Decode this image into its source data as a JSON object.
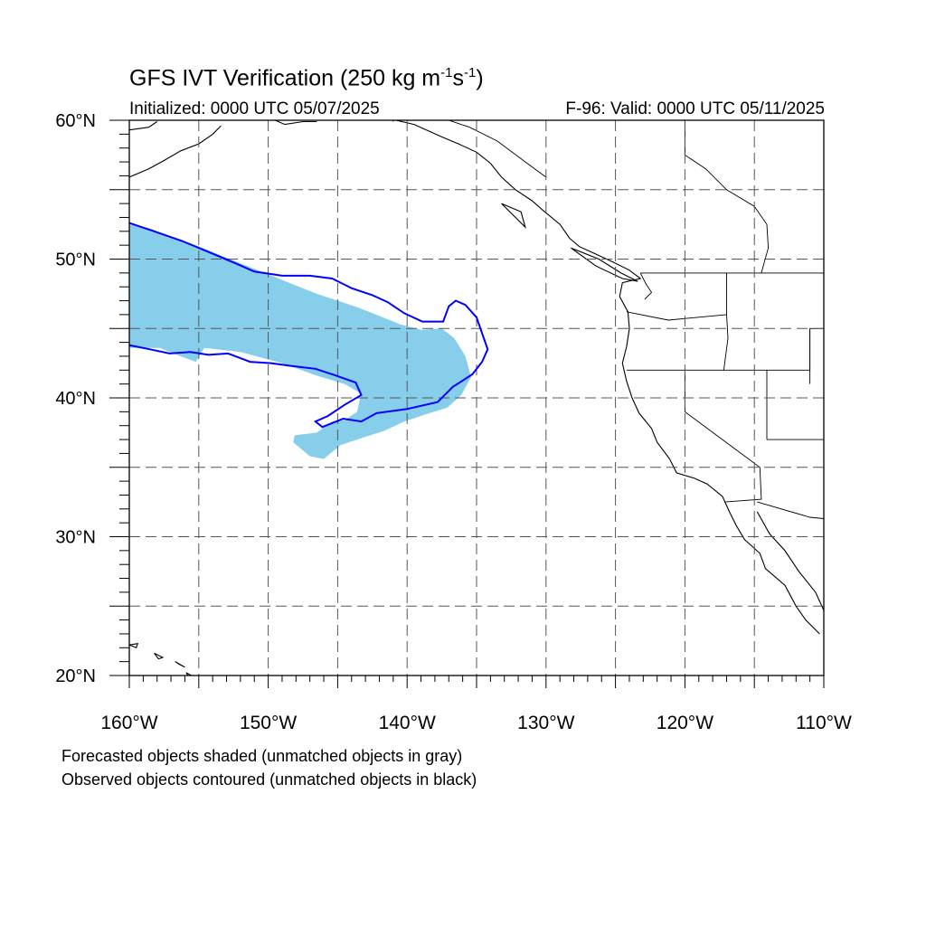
{
  "title": {
    "main_prefix": "GFS IVT Verification (250 kg m",
    "exp1": "-1",
    "mid": "s",
    "exp2": "-1",
    "suffix": ")"
  },
  "subtitle": {
    "initialized": "Initialized: 0000 UTC 05/07/2025",
    "valid": "F-96: Valid: 0000 UTC 05/11/2025"
  },
  "axes": {
    "lon_range": [
      -160,
      -110
    ],
    "lat_range": [
      20,
      60
    ],
    "lon_ticks": [
      {
        "value": -160,
        "label": "160°W"
      },
      {
        "value": -150,
        "label": "150°W"
      },
      {
        "value": -140,
        "label": "140°W"
      },
      {
        "value": -130,
        "label": "130°W"
      },
      {
        "value": -120,
        "label": "120°W"
      },
      {
        "value": -110,
        "label": "110°W"
      }
    ],
    "lat_ticks": [
      {
        "value": 20,
        "label": "20°N"
      },
      {
        "value": 30,
        "label": "30°N"
      },
      {
        "value": 40,
        "label": "40°N"
      },
      {
        "value": 50,
        "label": "50°N"
      },
      {
        "value": 60,
        "label": "60°N"
      }
    ],
    "grid_lon_every": 5,
    "grid_lat_every": 5,
    "grid": true,
    "grid_style": "dashed"
  },
  "colors": {
    "forecast_fill": "#87CEEB",
    "observed_contour": "#0000FF",
    "coastline": "#000000",
    "grid": "#555555"
  },
  "forecast_object": {
    "polygon": [
      [
        -160,
        52.5
      ],
      [
        -158.5,
        52.2
      ],
      [
        -157,
        51.6
      ],
      [
        -155.5,
        51.1
      ],
      [
        -154,
        50.5
      ],
      [
        -152.5,
        49.9
      ],
      [
        -151,
        49.3
      ],
      [
        -149.5,
        48.7
      ],
      [
        -148,
        48.1
      ],
      [
        -146.5,
        47.5
      ],
      [
        -145,
        47
      ],
      [
        -143.5,
        46.5
      ],
      [
        -142,
        45.9
      ],
      [
        -140.5,
        45.3
      ],
      [
        -139,
        44.9
      ],
      [
        -137.5,
        45
      ],
      [
        -136.6,
        44.3
      ],
      [
        -135.8,
        43
      ],
      [
        -135.4,
        41.5
      ],
      [
        -136.1,
        40.2
      ],
      [
        -137.1,
        39.3
      ],
      [
        -138.7,
        38.8
      ],
      [
        -140.2,
        38.3
      ],
      [
        -141.7,
        37.6
      ],
      [
        -143,
        37.2
      ],
      [
        -144.8,
        36.6
      ],
      [
        -146,
        35.6
      ],
      [
        -147,
        35.8
      ],
      [
        -148.2,
        36.8
      ],
      [
        -148.1,
        37.3
      ],
      [
        -146.5,
        37.5
      ],
      [
        -145.4,
        38.3
      ],
      [
        -144.5,
        38.4
      ],
      [
        -143.6,
        39
      ],
      [
        -143.3,
        40.3
      ],
      [
        -144.5,
        41
      ],
      [
        -146.5,
        41.6
      ],
      [
        -149,
        42.5
      ],
      [
        -152,
        43.3
      ],
      [
        -154.6,
        43.6
      ],
      [
        -155.2,
        42.6
      ],
      [
        -156.3,
        43
      ],
      [
        -157.8,
        43.6
      ],
      [
        -160,
        43.6
      ]
    ]
  },
  "observed_object": {
    "contour": [
      [
        -160,
        52.6
      ],
      [
        -158.2,
        52
      ],
      [
        -156.2,
        51.3
      ],
      [
        -154.5,
        50.6
      ],
      [
        -152.6,
        49.8
      ],
      [
        -151,
        49.1
      ],
      [
        -149,
        48.8
      ],
      [
        -147,
        48.8
      ],
      [
        -145.4,
        48.6
      ],
      [
        -144,
        47.9
      ],
      [
        -142.5,
        47.4
      ],
      [
        -141.4,
        46.9
      ],
      [
        -140.2,
        46.1
      ],
      [
        -138.9,
        45.5
      ],
      [
        -137.4,
        45.5
      ],
      [
        -137,
        46.6
      ],
      [
        -136.5,
        47
      ],
      [
        -135.8,
        46.7
      ],
      [
        -135,
        45.8
      ],
      [
        -134.2,
        43.5
      ],
      [
        -134.6,
        42.6
      ],
      [
        -135.3,
        41.7
      ],
      [
        -136.7,
        40.8
      ],
      [
        -137.8,
        39.7
      ],
      [
        -140,
        39.2
      ],
      [
        -142.2,
        38.9
      ],
      [
        -143.3,
        38.3
      ],
      [
        -144.6,
        38.5
      ],
      [
        -146.1,
        37.9
      ],
      [
        -146.6,
        38.3
      ],
      [
        -145.7,
        38.7
      ],
      [
        -144.5,
        39.5
      ],
      [
        -143.3,
        40.2
      ],
      [
        -143.7,
        41.1
      ],
      [
        -145.1,
        41.6
      ],
      [
        -146.6,
        42.1
      ],
      [
        -148.3,
        42.3
      ],
      [
        -149.8,
        42.5
      ],
      [
        -151.3,
        42.6
      ],
      [
        -152.9,
        43.2
      ],
      [
        -154.3,
        43.1
      ],
      [
        -155.6,
        43.3
      ],
      [
        -157.1,
        43.2
      ],
      [
        -158.5,
        43.5
      ],
      [
        -160,
        43.8
      ]
    ]
  },
  "coastlines": [
    [
      [
        -160,
        55.9
      ],
      [
        -158.6,
        56.5
      ],
      [
        -157.5,
        57.1
      ],
      [
        -156.3,
        57.8
      ],
      [
        -155,
        58.3
      ],
      [
        -154,
        59
      ],
      [
        -153.4,
        59.6
      ]
    ],
    [
      [
        -160,
        59.3
      ],
      [
        -158.6,
        59.5
      ],
      [
        -158,
        59.9
      ]
    ],
    [
      [
        -149.5,
        60
      ],
      [
        -148.8,
        59.7
      ],
      [
        -147.5,
        59.9
      ],
      [
        -146.5,
        59.9
      ]
    ],
    [
      [
        -140.8,
        60
      ],
      [
        -139.5,
        59.7
      ],
      [
        -137.5,
        58.8
      ],
      [
        -136.3,
        58.3
      ],
      [
        -135,
        57.7
      ],
      [
        -134,
        56.9
      ],
      [
        -133.2,
        55.9
      ],
      [
        -132.2,
        55
      ],
      [
        -131,
        54.2
      ],
      [
        -130.2,
        53.5
      ],
      [
        -129,
        52.5
      ],
      [
        -128.3,
        51.5
      ],
      [
        -127.6,
        50.9
      ],
      [
        -126.5,
        50.4
      ],
      [
        -125.2,
        49.8
      ],
      [
        -124,
        49.2
      ],
      [
        -123.2,
        48.6
      ],
      [
        -124.5,
        48.3
      ],
      [
        -124.7,
        47.3
      ],
      [
        -124.1,
        46.2
      ],
      [
        -124,
        45
      ],
      [
        -124.2,
        43.7
      ],
      [
        -124.5,
        42.5
      ],
      [
        -124.2,
        41.2
      ],
      [
        -123.8,
        40
      ],
      [
        -123.3,
        38.9
      ],
      [
        -122.4,
        37.8
      ],
      [
        -122,
        36.8
      ],
      [
        -121.1,
        35.6
      ],
      [
        -120.6,
        34.6
      ],
      [
        -119.3,
        34.2
      ],
      [
        -118.4,
        33.8
      ],
      [
        -117.3,
        32.9
      ],
      [
        -116.8,
        31.8
      ],
      [
        -116.3,
        30.8
      ],
      [
        -115.7,
        29.8
      ],
      [
        -114.6,
        28.8
      ],
      [
        -114.2,
        27.7
      ],
      [
        -112.8,
        26.5
      ],
      [
        -112,
        25
      ],
      [
        -111.3,
        24
      ],
      [
        -110.3,
        23
      ]
    ],
    [
      [
        -114.8,
        31.8
      ],
      [
        -113.9,
        30.2
      ],
      [
        -112.8,
        29
      ],
      [
        -111.8,
        27.5
      ],
      [
        -110.6,
        26
      ],
      [
        -110,
        24.7
      ]
    ],
    [
      [
        -133.2,
        54
      ],
      [
        -132.3,
        53.1
      ],
      [
        -131.5,
        52.3
      ],
      [
        -131.8,
        53.4
      ],
      [
        -133.2,
        54
      ]
    ],
    [
      [
        -128.2,
        50.8
      ],
      [
        -126.2,
        50
      ],
      [
        -124.6,
        49
      ],
      [
        -123.4,
        48.4
      ],
      [
        -124.5,
        48.6
      ],
      [
        -126.4,
        49.5
      ],
      [
        -128.2,
        50.8
      ]
    ],
    [
      [
        -160,
        22.2
      ],
      [
        -159.5,
        22
      ],
      [
        -159.4,
        22.3
      ],
      [
        -160,
        22.2
      ]
    ],
    [
      [
        -158.2,
        21.6
      ],
      [
        -157.6,
        21.3
      ],
      [
        -157.9,
        21.2
      ],
      [
        -158.2,
        21.6
      ]
    ],
    [
      [
        -156.7,
        21
      ],
      [
        -156,
        20.6
      ],
      [
        -156.4,
        20.8
      ],
      [
        -156.7,
        21
      ]
    ],
    [
      [
        -155.9,
        20.2
      ],
      [
        -155,
        19.7
      ],
      [
        -155.5,
        19.5
      ],
      [
        -155.9,
        20.2
      ]
    ]
  ],
  "borders": [
    [
      [
        -141,
        60
      ],
      [
        -141,
        59.9
      ]
    ],
    [
      [
        -130,
        55.9
      ],
      [
        -131.5,
        57
      ],
      [
        -133.5,
        58.5
      ],
      [
        -135.5,
        59.5
      ],
      [
        -137,
        60
      ]
    ],
    [
      [
        -123.2,
        49
      ],
      [
        -110,
        49
      ]
    ],
    [
      [
        -117,
        49
      ],
      [
        -117,
        46
      ],
      [
        -116.9,
        44.3
      ],
      [
        -117.2,
        42
      ]
    ],
    [
      [
        -124.2,
        46.2
      ],
      [
        -121.2,
        45.6
      ],
      [
        -117,
        46
      ]
    ],
    [
      [
        -124.2,
        42
      ],
      [
        -111,
        42
      ],
      [
        -111,
        45
      ],
      [
        -110,
        45
      ]
    ],
    [
      [
        -120,
        42
      ],
      [
        -120,
        39
      ],
      [
        -114.6,
        35
      ],
      [
        -114.5,
        32.7
      ],
      [
        -117.1,
        32.5
      ]
    ],
    [
      [
        -114.1,
        42
      ],
      [
        -114.1,
        37
      ]
    ],
    [
      [
        -114.1,
        37
      ],
      [
        -110,
        37
      ]
    ],
    [
      [
        -114.8,
        32.5
      ],
      [
        -111,
        31.4
      ],
      [
        -110,
        31.3
      ]
    ],
    [
      [
        -120,
        60
      ],
      [
        -120,
        57.5
      ],
      [
        -118.5,
        56.5
      ],
      [
        -117,
        55
      ],
      [
        -115,
        53.8
      ],
      [
        -114.1,
        52.5
      ],
      [
        -114,
        50.8
      ],
      [
        -114.5,
        49
      ]
    ],
    [
      [
        -111,
        44.9
      ],
      [
        -111,
        41
      ]
    ],
    [
      [
        -123.2,
        49
      ],
      [
        -122.8,
        48.2
      ],
      [
        -122.4,
        47.6
      ],
      [
        -122.9,
        47.1
      ]
    ]
  ],
  "legend": {
    "line1": "Forecasted objects shaded (unmatched objects in gray)",
    "line2": "Observed objects contoured (unmatched objects in black)"
  }
}
